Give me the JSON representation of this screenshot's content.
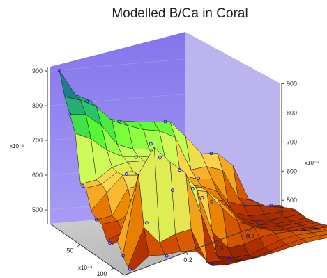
{
  "chart_data": {
    "type": "surface",
    "title": "Modelled B/Ca in Coral",
    "xlabel": "",
    "ylabel": "",
    "zlabel": "",
    "x_axis": {
      "multiplier": "x10⁻⁹",
      "ticks": [
        50,
        100
      ]
    },
    "y_axis": {
      "ticks": [
        0.2,
        0.3,
        0.4
      ]
    },
    "z_axis_left": {
      "multiplier": "x10⁻⁶",
      "ticks": [
        500,
        600,
        700,
        800,
        900
      ]
    },
    "z_axis_right": {
      "multiplier": "x10⁻⁶",
      "ticks": [
        500,
        600,
        700,
        800,
        900
      ]
    },
    "zlim": [
      460,
      920
    ],
    "grid": true,
    "colormap": [
      "#7a1500",
      "#c83c00",
      "#ee8a00",
      "#ffd24a",
      "#c8ff5a",
      "#5aff2a",
      "#27c468",
      "#1a7a8a",
      "#ffffff"
    ],
    "surface_points": [
      {
        "x": 5,
        "y": 0.02,
        "z": 900
      },
      {
        "x": 5,
        "y": 0.08,
        "z": 810
      },
      {
        "x": 5,
        "y": 0.15,
        "z": 750
      },
      {
        "x": 5,
        "y": 0.25,
        "z": 745
      },
      {
        "x": 20,
        "y": 0.02,
        "z": 795
      },
      {
        "x": 40,
        "y": 0.02,
        "z": 615
      },
      {
        "x": 60,
        "y": 0.02,
        "z": 545
      },
      {
        "x": 80,
        "y": 0.02,
        "z": 505
      },
      {
        "x": 100,
        "y": 0.02,
        "z": 495
      },
      {
        "x": 110,
        "y": 0.02,
        "z": 470
      },
      {
        "x": 100,
        "y": 0.08,
        "z": 815
      },
      {
        "x": 100,
        "y": 0.1,
        "z": 775
      },
      {
        "x": 95,
        "y": 0.15,
        "z": 730
      },
      {
        "x": 80,
        "y": 0.2,
        "z": 655
      },
      {
        "x": 60,
        "y": 0.25,
        "z": 600
      },
      {
        "x": 40,
        "y": 0.3,
        "z": 560
      },
      {
        "x": 20,
        "y": 0.4,
        "z": 520
      },
      {
        "x": 5,
        "y": 0.48,
        "z": 495
      },
      {
        "x": 30,
        "y": 0.4,
        "z": 500
      },
      {
        "x": 60,
        "y": 0.35,
        "z": 488
      },
      {
        "x": 100,
        "y": 0.25,
        "z": 480
      },
      {
        "x": 110,
        "y": 0.2,
        "z": 478
      },
      {
        "x": 110,
        "y": 0.1,
        "z": 505
      },
      {
        "x": 50,
        "y": 0.1,
        "z": 660
      },
      {
        "x": 50,
        "y": 0.2,
        "z": 610
      },
      {
        "x": 30,
        "y": 0.15,
        "z": 680
      },
      {
        "x": 5,
        "y": 0.35,
        "z": 650
      },
      {
        "x": 20,
        "y": 0.3,
        "z": 600
      },
      {
        "x": 80,
        "y": 0.1,
        "z": 560
      },
      {
        "x": 40,
        "y": 0.4,
        "z": 495
      }
    ]
  }
}
